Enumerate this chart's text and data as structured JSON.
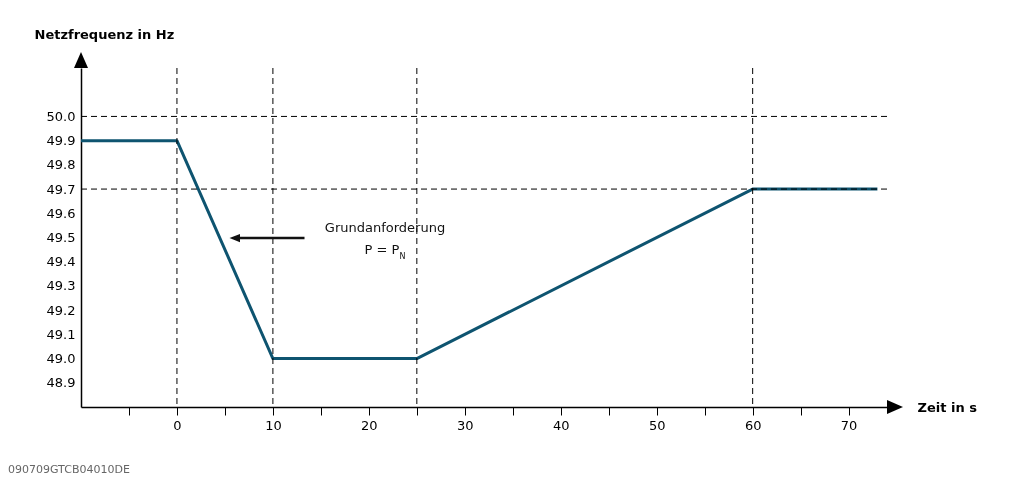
{
  "chart_data": {
    "type": "line",
    "xlabel": "Zeit in s",
    "ylabel": "Netzfrequenz in Hz",
    "x": [
      -10,
      0,
      10,
      25,
      60,
      73
    ],
    "series": [
      {
        "color": "#0e5470",
        "values": [
          49.9,
          49.9,
          49.0,
          49.0,
          49.7,
          49.7
        ]
      }
    ],
    "xlim": [
      -10,
      74
    ],
    "xticks": [
      {
        "value": -5,
        "label": null
      },
      0,
      {
        "value": 5,
        "label": null
      },
      10,
      {
        "value": 15,
        "label": null
      },
      20,
      {
        "value": 25,
        "label": null
      },
      30,
      {
        "value": 35,
        "label": null
      },
      40,
      {
        "value": 45,
        "label": null
      },
      50,
      {
        "value": 55,
        "label": null
      },
      60,
      {
        "value": 65,
        "label": null
      },
      70
    ],
    "ylim": [
      48.8,
      50.2
    ],
    "yticks": [
      48.9,
      {
        "value": 49.0,
        "label": "49.0"
      },
      49.1,
      49.2,
      49.3,
      49.4,
      49.5,
      49.6,
      49.7,
      49.8,
      49.9,
      {
        "value": 50.0,
        "label": "50.0"
      }
    ],
    "ref_lines": [
      {
        "axis": "y",
        "value": 50.0,
        "color": "#000000",
        "line_style": "dashed"
      },
      {
        "axis": "y",
        "value": 49.7,
        "color": "#000000",
        "line_style": "dashed"
      },
      {
        "axis": "x",
        "value": 0,
        "color": "#000000",
        "line_style": "dashed"
      },
      {
        "axis": "x",
        "value": 10,
        "color": "#000000",
        "line_style": "dashed"
      },
      {
        "axis": "x",
        "value": 25,
        "color": "#000000",
        "line_style": "dashed"
      },
      {
        "axis": "x",
        "value": 60,
        "color": "#000000",
        "line_style": "dashed"
      }
    ],
    "annotations": [
      "Grundanforderung\nP = P$_{N}$",
      "090709GTCB04010DE"
    ],
    "grid": false,
    "marker": "none",
    "line_style": "solid"
  }
}
